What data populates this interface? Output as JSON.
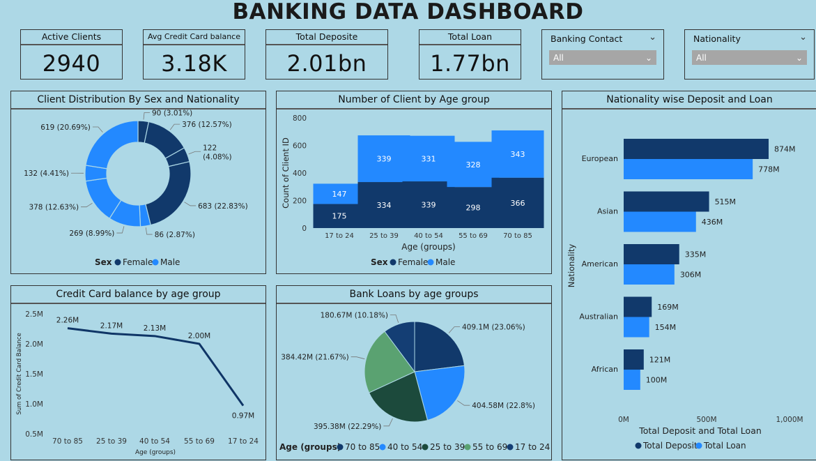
{
  "dashboard": {
    "title": "BANKING DATA DASHBOARD"
  },
  "kpis": [
    {
      "label": "Active Clients",
      "value": "2940"
    },
    {
      "label": "Avg Credit Card balance",
      "value": "3.18K"
    },
    {
      "label": "Total Deposite",
      "value": "2.01bn"
    },
    {
      "label": "Total Loan",
      "value": "1.77bn"
    }
  ],
  "slicers": [
    {
      "label": "Banking Contact",
      "selected": "All"
    },
    {
      "label": "Nationality",
      "selected": "All"
    }
  ],
  "colors": {
    "dark_navy": "#11396b",
    "bright_blue": "#2389ff",
    "dark_green": "#1c4a3c",
    "green": "#5aa271",
    "background": "#add8e6"
  },
  "chart_data": [
    {
      "id": "donut",
      "type": "pie",
      "title": "Client Distribution By Sex and Nationality",
      "legend_title": "Sex",
      "legend": [
        "Female",
        "Male"
      ],
      "slices": [
        {
          "series": "Female",
          "value": 90,
          "label": "90 (3.01%)"
        },
        {
          "series": "Female",
          "value": 376,
          "label": "376 (12.57%)"
        },
        {
          "series": "Female",
          "value": 122,
          "label_line1": "122",
          "label_line2": "(4.08%)"
        },
        {
          "series": "Female",
          "value": 683,
          "label": "683 (22.83%)"
        },
        {
          "series": "Male",
          "value": 86,
          "label": "86 (2.87%)"
        },
        {
          "series": "Male",
          "value": 269,
          "label": "269 (8.99%)"
        },
        {
          "series": "Male",
          "value": 378,
          "label": "378 (12.63%)"
        },
        {
          "series": "Male",
          "value": 132,
          "label": "132 (4.41%)"
        },
        {
          "series": "Male",
          "value": 619,
          "label": "619 (20.69%)"
        }
      ]
    },
    {
      "id": "agebar",
      "type": "bar",
      "stacked": true,
      "title": "Number of Client by Age group",
      "xlabel": "Age (groups)",
      "ylabel": "Count of Client ID",
      "ylim": [
        0,
        800
      ],
      "yticks": [
        "0",
        "200",
        "400",
        "600",
        "800"
      ],
      "categories": [
        "17 to 24",
        "25 to 39",
        "40 to 54",
        "55 to 69",
        "70 to 85"
      ],
      "legend_title": "Sex",
      "series": [
        {
          "name": "Female",
          "values": [
            175,
            334,
            339,
            298,
            366
          ]
        },
        {
          "name": "Male",
          "values": [
            147,
            339,
            331,
            328,
            343
          ]
        }
      ]
    },
    {
      "id": "natbar",
      "type": "bar",
      "orientation": "horizontal",
      "title": "Nationality wise Deposit and Loan",
      "xlabel": "Total Deposit and Total Loan",
      "ylabel": "Nationality",
      "xlim": [
        0,
        1000
      ],
      "xticks": [
        "0M",
        "500M",
        "1,000M"
      ],
      "categories": [
        "European",
        "Asian",
        "American",
        "Australian",
        "African"
      ],
      "series": [
        {
          "name": "Total Deposit",
          "values": [
            874,
            515,
            335,
            169,
            121
          ],
          "labels": [
            "874M",
            "515M",
            "335M",
            "169M",
            "121M"
          ]
        },
        {
          "name": "Total Loan",
          "values": [
            778,
            436,
            306,
            154,
            100
          ],
          "labels": [
            "778M",
            "436M",
            "306M",
            "154M",
            "100M"
          ]
        }
      ]
    },
    {
      "id": "ccline",
      "type": "line",
      "title": "Credit Card balance by age group",
      "xlabel": "Age (groups)",
      "ylabel": "Sum of Credit Card Balance",
      "ylim": [
        0.5,
        2.5
      ],
      "yticks": [
        "0.5M",
        "1.0M",
        "1.5M",
        "2.0M",
        "2.5M"
      ],
      "categories": [
        "70 to 85",
        "25 to 39",
        "40 to 54",
        "55 to 69",
        "17 to 24"
      ],
      "values": [
        2.26,
        2.17,
        2.13,
        2.0,
        0.97
      ],
      "labels": [
        "2.26M",
        "2.17M",
        "2.13M",
        "2.00M",
        "0.97M"
      ]
    },
    {
      "id": "loanpie",
      "type": "pie",
      "title": "Bank Loans by age groups",
      "legend_title": "Age (groups)",
      "slices": [
        {
          "name": "70 to 85",
          "value": 409.1,
          "label": "409.1M (23.06%)",
          "color": "#11396b"
        },
        {
          "name": "40 to 54",
          "value": 404.58,
          "label": "404.58M (22.8%)",
          "color": "#2389ff"
        },
        {
          "name": "25 to 39",
          "value": 395.38,
          "label": "395.38M (22.29%)",
          "color": "#1c4a3c"
        },
        {
          "name": "55 to 69",
          "value": 384.42,
          "label": "384.42M (21.67%)",
          "color": "#5aa271"
        },
        {
          "name": "17 to 24",
          "value": 180.67,
          "label": "180.67M (10.18%)",
          "color": "#143e74"
        }
      ]
    }
  ]
}
